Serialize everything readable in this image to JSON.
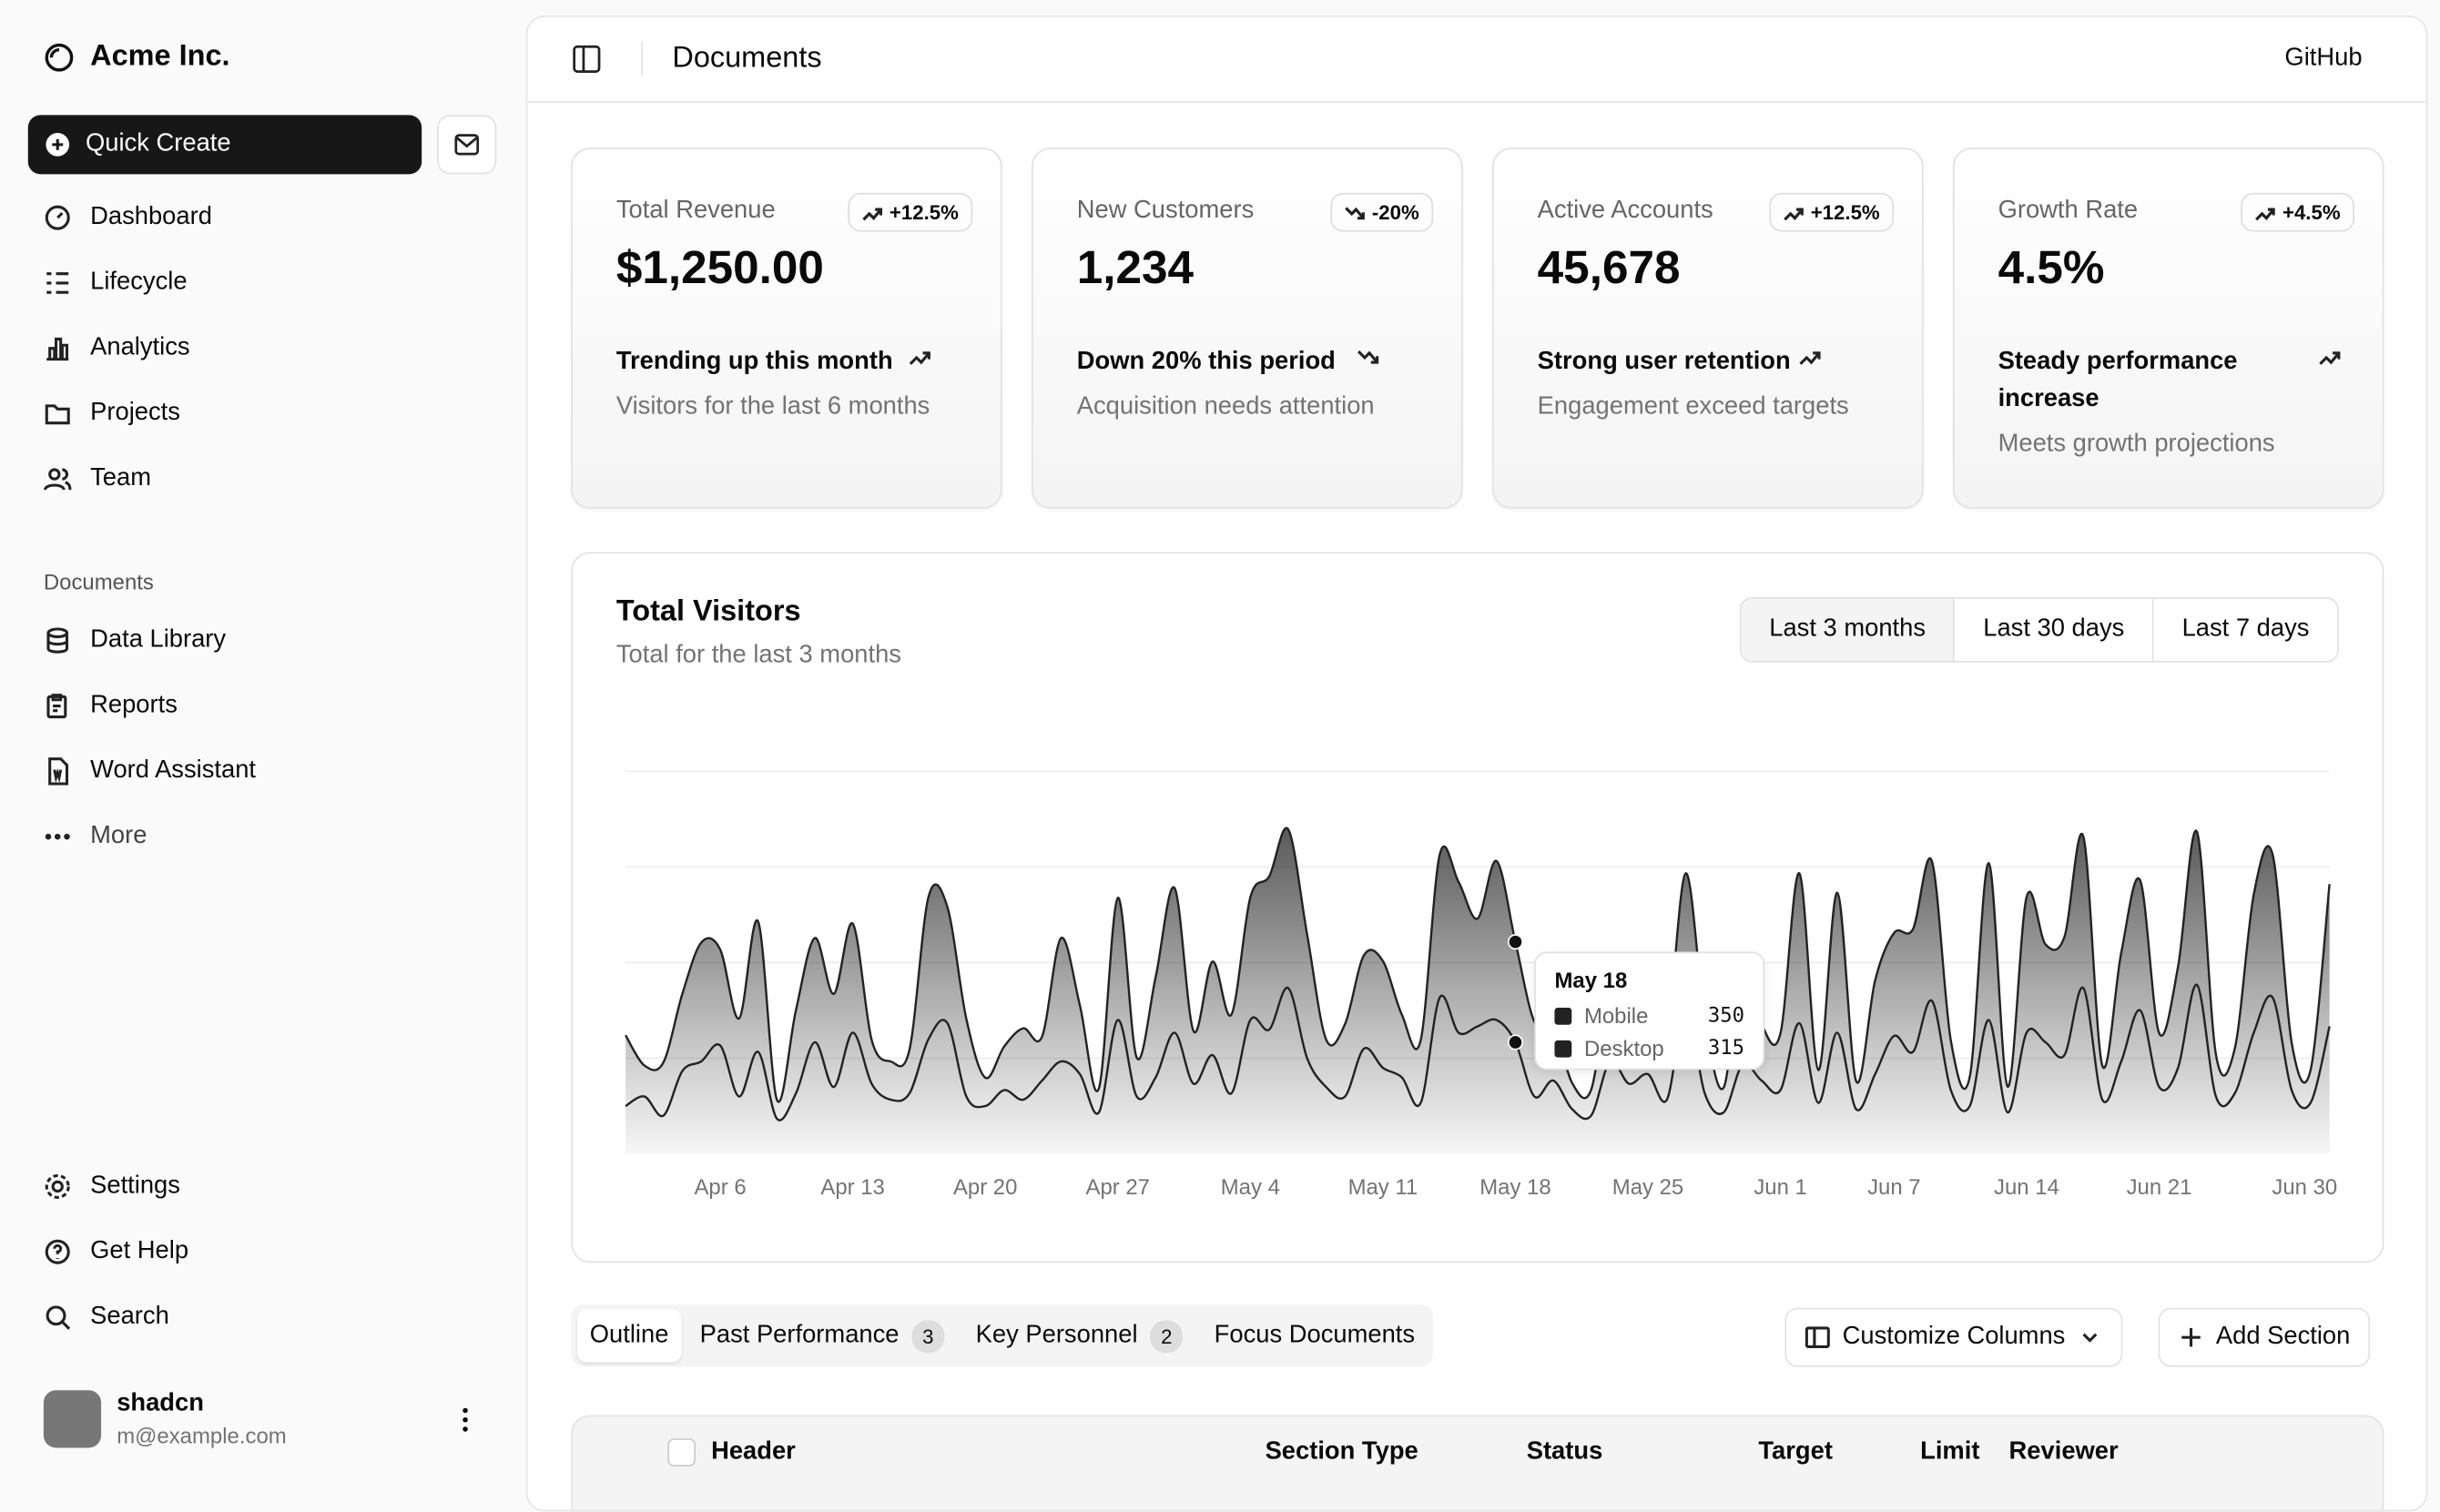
{
  "sidebar": {
    "brand": "Acme Inc.",
    "quick_create": "Quick Create",
    "nav": [
      "Dashboard",
      "Lifecycle",
      "Analytics",
      "Projects",
      "Team"
    ],
    "documents_label": "Documents",
    "documents": [
      "Data Library",
      "Reports",
      "Word Assistant",
      "More"
    ],
    "footer_nav": [
      "Settings",
      "Get Help",
      "Search"
    ],
    "user": {
      "name": "shadcn",
      "email": "m@example.com"
    }
  },
  "header": {
    "title": "Documents",
    "github": "GitHub"
  },
  "cards": [
    {
      "title": "Total Revenue",
      "badge": "+12.5%",
      "value": "$1,250.00",
      "trend": "Trending up this month",
      "note": "Visitors for the last 6 months"
    },
    {
      "title": "New Customers",
      "badge": "-20%",
      "value": "1,234",
      "trend": "Down 20% this period",
      "note": "Acquisition needs attention"
    },
    {
      "title": "Active Accounts",
      "badge": "+12.5%",
      "value": "45,678",
      "trend": "Strong user retention",
      "note": "Engagement exceed targets"
    },
    {
      "title": "Growth Rate",
      "badge": "+4.5%",
      "value": "4.5%",
      "trend": "Steady performance increase",
      "note": "Meets growth projections"
    }
  ],
  "chart_controls": [
    "Last 3 months",
    "Last 30 days",
    "Last 7 days"
  ],
  "chart_data": {
    "type": "area",
    "stacked": true,
    "title": "Total Visitors",
    "subtitle": "Total for the last 3 months",
    "categories": [
      null,
      null,
      null,
      null,
      null,
      "Apr 6",
      null,
      null,
      null,
      null,
      null,
      null,
      "Apr 13",
      null,
      null,
      null,
      null,
      null,
      null,
      "Apr 20",
      null,
      null,
      null,
      null,
      null,
      null,
      "Apr 27",
      null,
      null,
      null,
      null,
      null,
      null,
      "May 4",
      null,
      null,
      null,
      null,
      null,
      null,
      "May 11",
      null,
      null,
      null,
      null,
      null,
      null,
      "May 18",
      null,
      null,
      null,
      null,
      null,
      null,
      "May 25",
      null,
      null,
      null,
      null,
      null,
      null,
      "Jun 1",
      null,
      null,
      null,
      null,
      null,
      "Jun 7",
      null,
      null,
      null,
      null,
      null,
      null,
      "Jun 14",
      null,
      null,
      null,
      null,
      null,
      null,
      "Jun 21",
      null,
      null,
      null,
      null,
      null,
      null,
      null,
      null,
      "Jun 30"
    ],
    "series": [
      {
        "name": "Mobile",
        "color": "#555555",
        "values": [
          150,
          180,
          120,
          260,
          290,
          340,
          180,
          320,
          110,
          190,
          350,
          210,
          380,
          220,
          170,
          190,
          360,
          410,
          180,
          150,
          200,
          170,
          230,
          290,
          250,
          130,
          420,
          180,
          240,
          380,
          220,
          310,
          190,
          420,
          390,
          520,
          300,
          210,
          180,
          330,
          270,
          240,
          160,
          490,
          380,
          400,
          420,
          350,
          180,
          230,
          140,
          120,
          290,
          220,
          250,
          170,
          460,
          190,
          130,
          280,
          230,
          200,
          410,
          160,
          380,
          140,
          250,
          370,
          320,
          480,
          200,
          150,
          420,
          130,
          380,
          350,
          310,
          520,
          170,
          290,
          450,
          210,
          270,
          530,
          180,
          190,
          380,
          490,
          200,
          160,
          400
        ]
      },
      {
        "name": "Desktop",
        "color": "#222222",
        "values": [
          222,
          97,
          167,
          242,
          373,
          301,
          245,
          409,
          59,
          261,
          327,
          292,
          342,
          137,
          120,
          138,
          446,
          364,
          243,
          89,
          137,
          224,
          138,
          387,
          215,
          75,
          383,
          122,
          315,
          454,
          165,
          293,
          247,
          385,
          481,
          498,
          388,
          149,
          227,
          293,
          335,
          197,
          197,
          448,
          473,
          338,
          499,
          315,
          235,
          177,
          82,
          81,
          252,
          294,
          201,
          213,
          420,
          233,
          78,
          340,
          178,
          178,
          470,
          103,
          439,
          88,
          294,
          323,
          385,
          438,
          155,
          92,
          492,
          81,
          426,
          307,
          371,
          475,
          107,
          341,
          408,
          169,
          317,
          480,
          132,
          141,
          434,
          448,
          149,
          103,
          446
        ]
      }
    ],
    "ylim": [
      0,
      1200
    ],
    "grid": true,
    "tooltip_index": 47
  },
  "tabs": [
    {
      "label": "Outline"
    },
    {
      "label": "Past Performance",
      "count": "3"
    },
    {
      "label": "Key Personnel",
      "count": "2"
    },
    {
      "label": "Focus Documents"
    }
  ],
  "buttons": {
    "customize": "Customize Columns",
    "add": "Add Section"
  },
  "table": {
    "headers": [
      "Header",
      "Section Type",
      "Status",
      "Target",
      "Limit",
      "Reviewer"
    ]
  }
}
